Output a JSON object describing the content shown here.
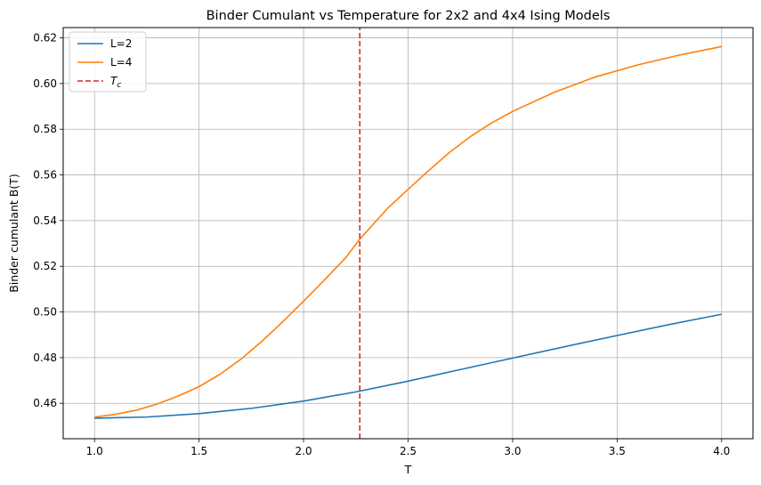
{
  "chart_data": {
    "type": "line",
    "title": "Binder Cumulant vs Temperature for 2x2 and 4x4 Ising Models",
    "xlabel": "T",
    "ylabel": "Binder cumulant B(T)",
    "xlim": [
      0.85,
      4.15
    ],
    "ylim": [
      0.4445,
      0.6245
    ],
    "xticks": [
      1.0,
      1.5,
      2.0,
      2.5,
      3.0,
      3.5,
      4.0
    ],
    "xtick_labels": [
      "1.0",
      "1.5",
      "2.0",
      "2.5",
      "3.0",
      "3.5",
      "4.0"
    ],
    "yticks": [
      0.46,
      0.48,
      0.5,
      0.52,
      0.54,
      0.56,
      0.58,
      0.6,
      0.62
    ],
    "ytick_labels": [
      "0.46",
      "0.48",
      "0.50",
      "0.52",
      "0.54",
      "0.56",
      "0.58",
      "0.60",
      "0.62"
    ],
    "grid": true,
    "legend_position": "top-left",
    "series": [
      {
        "name": "L=2",
        "color": "#1f77b4",
        "style": "solid",
        "x": [
          1.0,
          1.25,
          1.5,
          1.75,
          2.0,
          2.25,
          2.5,
          2.75,
          3.0,
          3.25,
          3.5,
          3.75,
          4.0
        ],
        "y": [
          0.4535,
          0.454,
          0.4555,
          0.4578,
          0.461,
          0.465,
          0.4697,
          0.4748,
          0.4798,
          0.4848,
          0.4897,
          0.4945,
          0.499
        ]
      },
      {
        "name": "L=4",
        "color": "#ff7f0e",
        "style": "solid",
        "x": [
          1.0,
          1.1,
          1.2,
          1.3,
          1.4,
          1.5,
          1.6,
          1.7,
          1.8,
          1.9,
          2.0,
          2.1,
          2.2,
          2.27,
          2.4,
          2.5,
          2.6,
          2.7,
          2.8,
          2.9,
          3.0,
          3.2,
          3.4,
          3.6,
          3.8,
          4.0
        ],
        "y": [
          0.454,
          0.4552,
          0.457,
          0.4597,
          0.4632,
          0.4673,
          0.4727,
          0.4793,
          0.4871,
          0.4957,
          0.5047,
          0.514,
          0.5236,
          0.532,
          0.5452,
          0.5537,
          0.562,
          0.57,
          0.5769,
          0.5828,
          0.5878,
          0.5962,
          0.603,
          0.6082,
          0.6125,
          0.6162
        ]
      },
      {
        "name": "$T_c$",
        "color": "#d62728",
        "style": "dashed",
        "x": [
          2.269,
          2.269
        ],
        "y": [
          0.4445,
          0.6245
        ]
      }
    ]
  }
}
